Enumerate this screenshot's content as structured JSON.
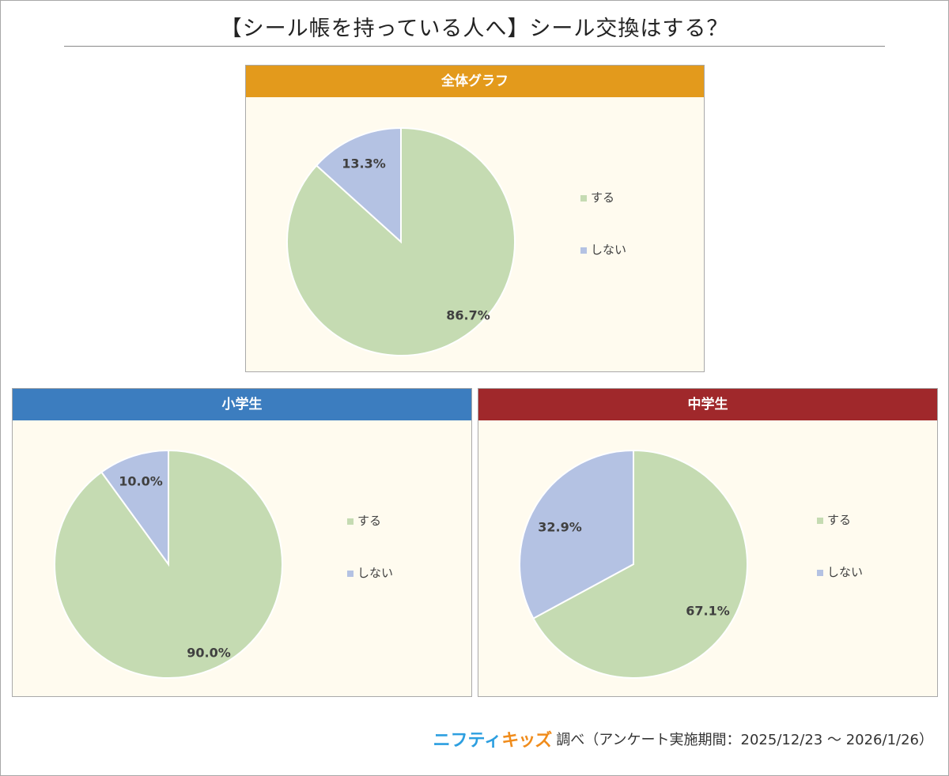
{
  "title": "【シール帳を持っている人へ】シール交換はする？",
  "chart_data": [
    {
      "type": "pie",
      "title": "全体グラフ",
      "header_color": "#e39a1c",
      "categories": [
        "する",
        "しない"
      ],
      "values": [
        86.7,
        13.3
      ],
      "labels": [
        "86.7%",
        "13.3%"
      ],
      "colors": [
        "#c5dbb2",
        "#b4c2e3"
      ],
      "legend": "right"
    },
    {
      "type": "pie",
      "title": "小学生",
      "header_color": "#3c7dbf",
      "categories": [
        "する",
        "しない"
      ],
      "values": [
        90.0,
        10.0
      ],
      "labels": [
        "90.0%",
        "10.0%"
      ],
      "colors": [
        "#c5dbb2",
        "#b4c2e3"
      ],
      "legend": "right"
    },
    {
      "type": "pie",
      "title": "中学生",
      "header_color": "#a0282b",
      "categories": [
        "する",
        "しない"
      ],
      "values": [
        67.1,
        32.9
      ],
      "labels": [
        "67.1%",
        "32.9%"
      ],
      "colors": [
        "#c5dbb2",
        "#b4c2e3"
      ],
      "legend": "right"
    }
  ],
  "credit": {
    "logo_part1": "ニフティ",
    "logo_part2": "キッズ",
    "text": "調べ（アンケート実施期間：2025/12/23 ～ 2026/1/26）"
  }
}
